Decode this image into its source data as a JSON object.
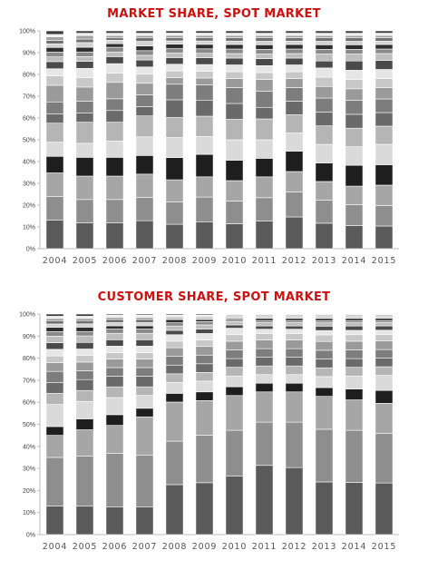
{
  "colors": {
    "title": "#cc1111",
    "axis": "#bbbbbb",
    "segment_palette": [
      "#5a5a5a",
      "#8e8e8e",
      "#a6a6a6",
      "#1e1e1e",
      "#dadada",
      "#b5b5b5",
      "#6a6a6a",
      "#7d7d7d",
      "#9a9a9a",
      "#c8c8c8",
      "#e6e6e6",
      "#4a4a4a",
      "#bdbdbd",
      "#8a8a8a",
      "#2e2e2e",
      "#d2d2d2",
      "#707070",
      "#a0a0a0",
      "#ececec",
      "#3c3c3c"
    ]
  },
  "chart_data": [
    {
      "type": "bar",
      "stacked": true,
      "title": "MARKET SHARE, SPOT MARKET",
      "categories": [
        "2004",
        "2005",
        "2006",
        "2007",
        "2008",
        "2009",
        "2010",
        "2011",
        "2012",
        "2013",
        "2014",
        "2015"
      ],
      "ylim": [
        0,
        100
      ],
      "yticks": [
        "0%",
        "10%",
        "20%",
        "30%",
        "40%",
        "50%",
        "60%",
        "70%",
        "80%",
        "90%",
        "100%"
      ],
      "grid": false,
      "legend": "none",
      "segments_by_category": [
        [
          12,
          10,
          10,
          7,
          6,
          8,
          4,
          5,
          7,
          4,
          3,
          3,
          2,
          2,
          2,
          1.5,
          1.5,
          1.5,
          1,
          1.5
        ],
        [
          11,
          10,
          10,
          8,
          6,
          9,
          4,
          5,
          6,
          4,
          4,
          3,
          2,
          2,
          2,
          2,
          1.5,
          1.5,
          1,
          1
        ],
        [
          11,
          10,
          10,
          8,
          7,
          8,
          5,
          5,
          7,
          4,
          4,
          3,
          2,
          2,
          1.5,
          1.5,
          1,
          1,
          1,
          1
        ],
        [
          12,
          10,
          10,
          8,
          8,
          9,
          4,
          5,
          5,
          4,
          3,
          3,
          2,
          2,
          2,
          2,
          1.5,
          1,
          1,
          1
        ],
        [
          11,
          10,
          10,
          10,
          9,
          9,
          8,
          7,
          3,
          3,
          3,
          3,
          2,
          2,
          2,
          1.5,
          1.5,
          1,
          1,
          1
        ],
        [
          12,
          11,
          9,
          10,
          8,
          9,
          7,
          7,
          3,
          3,
          3,
          3,
          2,
          2,
          2,
          1.5,
          1.5,
          1,
          1,
          1
        ],
        [
          11,
          10,
          9,
          9,
          9,
          9,
          7,
          7,
          4,
          3,
          3,
          3,
          2,
          2,
          2,
          1.5,
          1.5,
          1,
          1,
          1
        ],
        [
          12,
          10,
          9,
          8,
          8,
          9,
          5,
          7,
          5,
          3,
          3,
          3,
          2,
          2,
          2,
          1.5,
          1.5,
          1,
          1,
          1
        ],
        [
          14,
          11,
          9,
          9,
          8,
          8,
          6,
          6,
          4,
          3,
          3,
          3,
          2,
          2,
          2,
          1.5,
          1.5,
          1,
          1,
          1
        ],
        [
          11,
          10,
          8,
          8,
          8,
          8,
          6,
          6,
          5,
          4,
          4,
          3,
          3,
          2,
          2,
          1.5,
          1.5,
          1,
          1,
          1
        ],
        [
          10,
          9,
          8,
          9,
          8,
          8,
          6,
          6,
          5,
          4,
          4,
          4,
          3,
          2,
          2,
          1.5,
          1.5,
          1,
          1,
          1
        ],
        [
          10,
          9,
          9,
          9,
          9,
          8,
          6,
          6,
          5,
          4,
          4,
          4,
          3,
          2,
          2,
          1.5,
          1.5,
          1,
          1,
          1
        ]
      ]
    },
    {
      "type": "bar",
      "stacked": true,
      "title": "CUSTOMER SHARE, SPOT MARKET",
      "categories": [
        "2004",
        "2005",
        "2006",
        "2007",
        "2008",
        "2009",
        "2010",
        "2011",
        "2012",
        "2013",
        "2014",
        "2015"
      ],
      "ylim": [
        0,
        100
      ],
      "yticks": [
        "0%",
        "10%",
        "20%",
        "30%",
        "40%",
        "50%",
        "60%",
        "70%",
        "80%",
        "90%",
        "100%"
      ],
      "grid": false,
      "legend": "none",
      "segments_by_category": [
        [
          13,
          22,
          10,
          4,
          10,
          5,
          5,
          5,
          4,
          3,
          3,
          3,
          3,
          2,
          2,
          1.5,
          1.5,
          1,
          1,
          1
        ],
        [
          13,
          23,
          12,
          5,
          8,
          5,
          5,
          4,
          4,
          3,
          3,
          3,
          3,
          2,
          2,
          1.5,
          1.5,
          1,
          1,
          1
        ],
        [
          13,
          25,
          13,
          5,
          8,
          5,
          5,
          4,
          4,
          3,
          3,
          3,
          3,
          2,
          1.5,
          1.5,
          1.5,
          1,
          1,
          0.5
        ],
        [
          13,
          24,
          18,
          4,
          6,
          4,
          5,
          4,
          4,
          3,
          3,
          3,
          3,
          2,
          1.5,
          1.5,
          1.5,
          1,
          1,
          0.5
        ],
        [
          23,
          20,
          18,
          4,
          5,
          4,
          4,
          4,
          4,
          3,
          3,
          2,
          2,
          1.5,
          1.5,
          0.5,
          0.5,
          0.5,
          0.5,
          0.5
        ],
        [
          24,
          22,
          16,
          4,
          5,
          4,
          4,
          4,
          4,
          3,
          3,
          2,
          2,
          1.5,
          1,
          0.5,
          0.5,
          0.5,
          0.5,
          0.5
        ],
        [
          27,
          21,
          16,
          4,
          5,
          4,
          4,
          4,
          4,
          3,
          3,
          1.5,
          1.5,
          1,
          0.5,
          0.5,
          0.5,
          0.5,
          0.5
        ],
        [
          32,
          20,
          14,
          4,
          4,
          4,
          4,
          4,
          4,
          3,
          2,
          1.5,
          1.5,
          1,
          1,
          0.5,
          0.5,
          0.5,
          0.5
        ],
        [
          31,
          21,
          14,
          4,
          4,
          4,
          4,
          4,
          4,
          3,
          2,
          1.5,
          1.5,
          1,
          1,
          0.5,
          0.5,
          0.5,
          0.5
        ],
        [
          24,
          24,
          15,
          4,
          5,
          4,
          4,
          4,
          4,
          3,
          2,
          2,
          1.5,
          1,
          1,
          0.5,
          0.5,
          0.5,
          0.5
        ],
        [
          24,
          24,
          14,
          5,
          6,
          4,
          4,
          4,
          4,
          3,
          2,
          2,
          1.5,
          1,
          1,
          0.5,
          0.5,
          0.5,
          0.5
        ],
        [
          24,
          23,
          14,
          6,
          7,
          4,
          4,
          4,
          4,
          3,
          2,
          2,
          1.5,
          1,
          1,
          0.5,
          0.5,
          0.5,
          0.5
        ]
      ]
    }
  ]
}
